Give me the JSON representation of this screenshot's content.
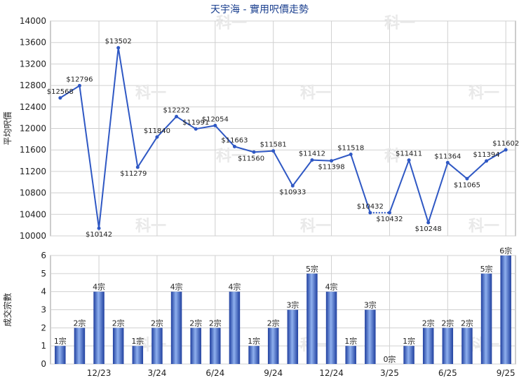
{
  "title": "天宇海 - 實用呎價走勢",
  "watermark": "科一",
  "colors": {
    "line": "#2f58c4",
    "bar_dark": "#1f3f9f",
    "bar_light": "#8fb0ee",
    "grid": "#d0d0d0",
    "title": "#1a3f8f"
  },
  "chart_data": [
    {
      "type": "line",
      "ylabel": "平均呎價",
      "ylim": [
        10000,
        14000
      ],
      "yticks": [
        10000,
        10400,
        10800,
        11200,
        11600,
        12000,
        12400,
        12800,
        13200,
        13600,
        14000
      ],
      "x_index": [
        0,
        1,
        2,
        3,
        4,
        5,
        6,
        7,
        8,
        9,
        10,
        11,
        12,
        13,
        14,
        15,
        16,
        17,
        18,
        19,
        20,
        21,
        22,
        23,
        24,
        25,
        26,
        27,
        28,
        29,
        30,
        31,
        32,
        33,
        34,
        35,
        36
      ],
      "points": [
        {
          "i": 0,
          "v": 12568,
          "label": "$12568"
        },
        {
          "i": 1,
          "v": 12796,
          "label": "$12796"
        },
        {
          "i": 2,
          "v": 10142,
          "label": "$10142"
        },
        {
          "i": 3,
          "v": 13502,
          "label": "$13502"
        },
        {
          "i": 4,
          "v": 11279,
          "label": "$11279"
        },
        {
          "i": 5,
          "v": 11840,
          "label": "$11840"
        },
        {
          "i": 6,
          "v": 12222,
          "label": "$12222"
        },
        {
          "i": 7,
          "v": 11991,
          "label": "$11991"
        },
        {
          "i": 8,
          "v": 12054,
          "label": "$12054"
        },
        {
          "i": 9,
          "v": 11663,
          "label": "$11663"
        },
        {
          "i": 10,
          "v": 11560,
          "label": "$11560"
        },
        {
          "i": 11,
          "v": 11581,
          "label": "$11581"
        },
        {
          "i": 12,
          "v": 10933,
          "label": "$10933"
        },
        {
          "i": 13,
          "v": 11412,
          "label": "$11412"
        },
        {
          "i": 14,
          "v": 11398,
          "label": "$11398"
        },
        {
          "i": 15,
          "v": 11518,
          "label": "$11518"
        },
        {
          "i": 16,
          "v": 10432,
          "label": "$10432"
        },
        {
          "i": 17,
          "v": 10432,
          "label": "$10432"
        },
        {
          "i": 18,
          "v": 11411,
          "label": "$11411"
        },
        {
          "i": 19,
          "v": 10248,
          "label": "$10248"
        },
        {
          "i": 20,
          "v": 11364,
          "label": "$11364"
        },
        {
          "i": 21,
          "v": 11065,
          "label": "$11065"
        },
        {
          "i": 22,
          "v": 11394,
          "label": "$11394"
        },
        {
          "i": 23,
          "v": 11602,
          "label": "$11602"
        }
      ]
    },
    {
      "type": "bar",
      "ylabel": "成交宗數",
      "ylim": [
        0,
        6
      ],
      "yticks": [
        0,
        1,
        2,
        3,
        4,
        5,
        6
      ],
      "xticks": [
        "12/23",
        "3/24",
        "6/24",
        "9/24",
        "12/24",
        "3/25",
        "6/25",
        "9/25"
      ],
      "values": [
        1,
        2,
        4,
        2,
        1,
        2,
        4,
        2,
        2,
        4,
        1,
        2,
        3,
        5,
        4,
        1,
        3,
        0,
        1,
        2,
        2,
        2,
        5,
        6
      ],
      "labels": [
        "1宗",
        "2宗",
        "4宗",
        "2宗",
        "1宗",
        "2宗",
        "4宗",
        "2宗",
        "2宗",
        "4宗",
        "1宗",
        "2宗",
        "3宗",
        "5宗",
        "4宗",
        "1宗",
        "3宗",
        "0宗",
        "1宗",
        "2宗",
        "2宗",
        "2宗",
        "5宗",
        "6宗"
      ]
    }
  ]
}
